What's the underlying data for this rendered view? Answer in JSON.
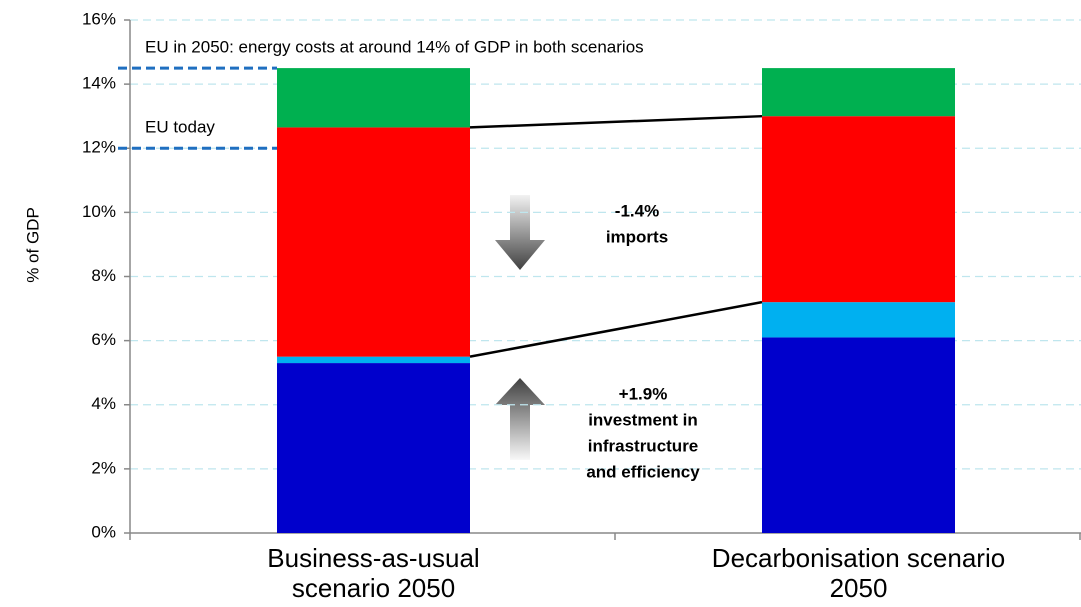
{
  "chart_data": {
    "type": "stacked_bar",
    "y_label": "% of GDP",
    "categories": [
      "Business-as-usual scenario 2050",
      "Decarbonisation scenario 2050"
    ],
    "series": [
      {
        "color": "#0000cc",
        "values": [
          5.3,
          6.1
        ]
      },
      {
        "color": "#00b0f0",
        "values": [
          0.2,
          1.1
        ]
      },
      {
        "color": "#ff0000",
        "values": [
          7.15,
          5.8
        ]
      },
      {
        "color": "#00b050",
        "values": [
          1.85,
          1.5
        ]
      }
    ],
    "ylim": [
      0,
      16
    ],
    "yticks": [
      {
        "value": 0,
        "label": "0%"
      },
      {
        "value": 2,
        "label": "2%"
      },
      {
        "value": 4,
        "label": "4%"
      },
      {
        "value": 6,
        "label": "6%"
      },
      {
        "value": 8,
        "label": "8%"
      },
      {
        "value": 10,
        "label": "10%"
      },
      {
        "value": 12,
        "label": "12%"
      },
      {
        "value": 14,
        "label": "14%"
      },
      {
        "value": 16,
        "label": "16%"
      }
    ],
    "grid": true,
    "reference_lines": [
      {
        "value": 14.5,
        "label": "EU in 2050: energy costs at around 14% of GDP in both scenarios",
        "color": "#1f6fc0"
      },
      {
        "value": 12,
        "label": "EU today",
        "color": "#1f6fc0"
      }
    ],
    "annotations": [
      {
        "lines": [
          "-1.4%",
          "imports"
        ]
      },
      {
        "lines": [
          "+1.9%",
          "investment in",
          "infrastructure",
          "and efficiency"
        ]
      }
    ]
  }
}
